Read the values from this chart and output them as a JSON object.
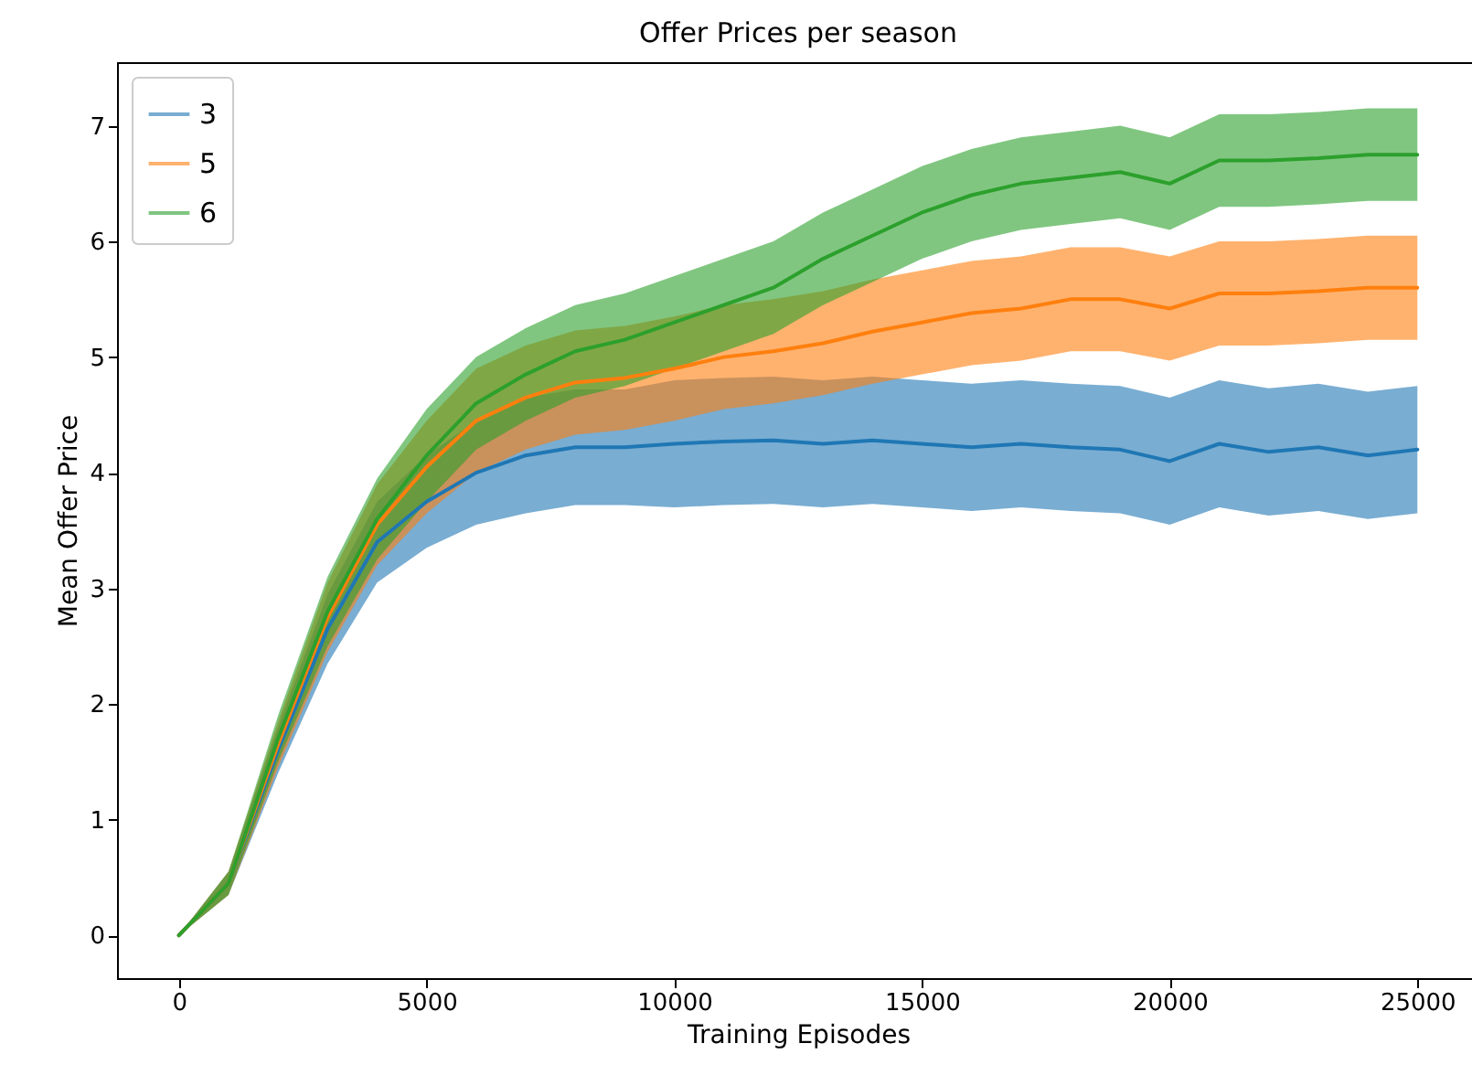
{
  "chart_data": {
    "type": "line",
    "title": "Offer Prices per season",
    "xlabel": "Training Episodes",
    "ylabel": "Mean Offer Price",
    "x": [
      0,
      1000,
      2000,
      3000,
      4000,
      5000,
      6000,
      7000,
      8000,
      9000,
      10000,
      11000,
      12000,
      13000,
      14000,
      15000,
      16000,
      17000,
      18000,
      19000,
      20000,
      21000,
      22000,
      23000,
      24000,
      25000
    ],
    "series": [
      {
        "name": "3",
        "color": "#1f77b4",
        "values": [
          0,
          0.45,
          1.6,
          2.65,
          3.4,
          3.75,
          4.0,
          4.15,
          4.22,
          4.22,
          4.25,
          4.27,
          4.28,
          4.25,
          4.28,
          4.25,
          4.22,
          4.25,
          4.22,
          4.2,
          4.1,
          4.25,
          4.18,
          4.22,
          4.15,
          4.2
        ],
        "lower": [
          0,
          0.35,
          1.4,
          2.35,
          3.05,
          3.35,
          3.55,
          3.65,
          3.72,
          3.72,
          3.7,
          3.72,
          3.73,
          3.7,
          3.73,
          3.7,
          3.67,
          3.7,
          3.67,
          3.65,
          3.55,
          3.7,
          3.63,
          3.67,
          3.6,
          3.65
        ],
        "upper": [
          0,
          0.55,
          1.8,
          2.95,
          3.75,
          4.15,
          4.45,
          4.65,
          4.72,
          4.72,
          4.8,
          4.82,
          4.83,
          4.8,
          4.83,
          4.8,
          4.77,
          4.8,
          4.77,
          4.75,
          4.65,
          4.8,
          4.73,
          4.77,
          4.7,
          4.75
        ]
      },
      {
        "name": "5",
        "color": "#ff7f0e",
        "values": [
          0,
          0.45,
          1.65,
          2.75,
          3.55,
          4.05,
          4.45,
          4.65,
          4.78,
          4.82,
          4.9,
          5.0,
          5.05,
          5.12,
          5.22,
          5.3,
          5.38,
          5.42,
          5.5,
          5.5,
          5.42,
          5.55,
          5.55,
          5.57,
          5.6,
          5.6
        ],
        "lower": [
          0,
          0.35,
          1.45,
          2.45,
          3.2,
          3.65,
          4.0,
          4.2,
          4.33,
          4.37,
          4.45,
          4.55,
          4.6,
          4.67,
          4.77,
          4.85,
          4.93,
          4.97,
          5.05,
          5.05,
          4.97,
          5.1,
          5.1,
          5.12,
          5.15,
          5.15
        ],
        "upper": [
          0,
          0.55,
          1.85,
          3.05,
          3.9,
          4.45,
          4.9,
          5.1,
          5.23,
          5.27,
          5.35,
          5.45,
          5.5,
          5.57,
          5.67,
          5.75,
          5.83,
          5.87,
          5.95,
          5.95,
          5.87,
          6.0,
          6.0,
          6.02,
          6.05,
          6.05
        ]
      },
      {
        "name": "6",
        "color": "#2ca02c",
        "values": [
          0,
          0.45,
          1.7,
          2.8,
          3.6,
          4.15,
          4.6,
          4.85,
          5.05,
          5.15,
          5.3,
          5.45,
          5.6,
          5.85,
          6.05,
          6.25,
          6.4,
          6.5,
          6.55,
          6.6,
          6.5,
          6.7,
          6.7,
          6.72,
          6.75,
          6.75
        ],
        "lower": [
          0,
          0.35,
          1.5,
          2.5,
          3.25,
          3.75,
          4.2,
          4.45,
          4.65,
          4.75,
          4.9,
          5.05,
          5.2,
          5.45,
          5.65,
          5.85,
          6.0,
          6.1,
          6.15,
          6.2,
          6.1,
          6.3,
          6.3,
          6.32,
          6.35,
          6.35
        ],
        "upper": [
          0,
          0.55,
          1.9,
          3.1,
          3.95,
          4.55,
          5.0,
          5.25,
          5.45,
          5.55,
          5.7,
          5.85,
          6.0,
          6.25,
          6.45,
          6.65,
          6.8,
          6.9,
          6.95,
          7.0,
          6.9,
          7.1,
          7.1,
          7.12,
          7.15,
          7.15
        ]
      }
    ],
    "xlim": [
      -1250,
      26250
    ],
    "xticks": [
      0,
      5000,
      10000,
      15000,
      20000,
      25000
    ],
    "ylim": [
      -0.37,
      7.55
    ],
    "yticks": [
      0,
      1,
      2,
      3,
      4,
      5,
      6,
      7
    ],
    "grid": false,
    "legend": "top left",
    "line_style": "solid"
  }
}
